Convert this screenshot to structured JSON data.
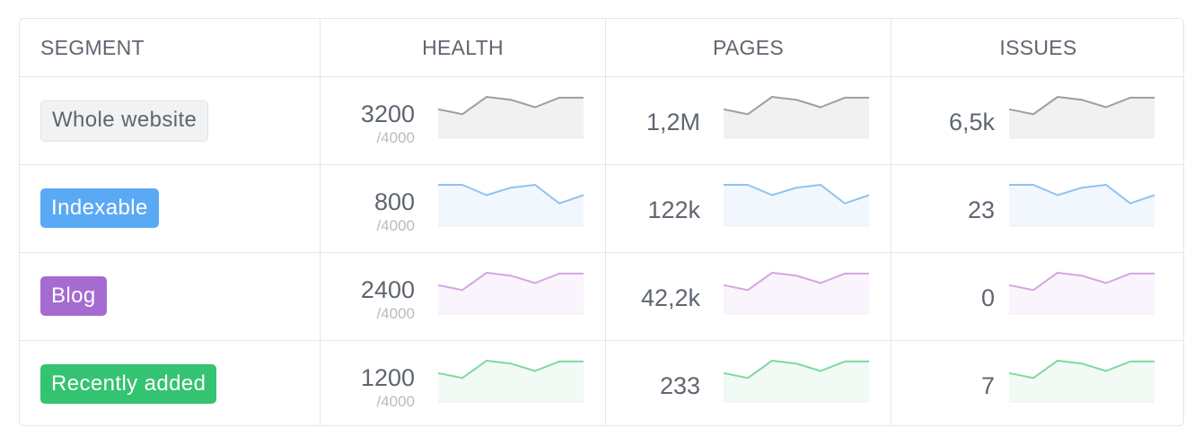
{
  "header": {
    "segment": "SEGMENT",
    "health": "HEALTH",
    "pages": "PAGES",
    "issues": "ISSUES"
  },
  "rows": [
    {
      "segment": "Whole website",
      "badge_bg": "#f1f2f3",
      "color": "#9e9e9e",
      "fill": "#f1f1f1",
      "health": "3200",
      "health_max": "/4000",
      "pages": "1,2M",
      "issues": "6,5k"
    },
    {
      "segment": "Indexable",
      "badge_bg": "#5aa9f5",
      "color": "#8ec3f2",
      "fill": "#f2f7fd",
      "health": "800",
      "health_max": "/4000",
      "pages": "122k",
      "issues": "23"
    },
    {
      "segment": "Blog",
      "badge_bg": "#a66bd1",
      "color": "#d3a6e4",
      "fill": "#faf4fc",
      "health": "2400",
      "health_max": "/4000",
      "pages": "42,2k",
      "issues": "0"
    },
    {
      "segment": "Recently added",
      "badge_bg": "#34c370",
      "color": "#7ed9a1",
      "fill": "#f1faf4",
      "health": "1200",
      "health_max": "/4000",
      "pages": "233",
      "issues": "7"
    }
  ],
  "sparklines": {
    "type": "line",
    "values_row0": [
      0.7,
      0.58,
      1.0,
      0.93,
      0.75,
      0.98,
      0.98
    ],
    "values_row1": [
      1.0,
      1.0,
      0.75,
      0.93,
      1.0,
      0.55,
      0.75
    ],
    "values_row2": [
      0.7,
      0.58,
      1.0,
      0.93,
      0.75,
      0.98,
      0.98
    ],
    "values_row3": [
      0.7,
      0.58,
      1.0,
      0.93,
      0.75,
      0.98,
      0.98
    ]
  }
}
